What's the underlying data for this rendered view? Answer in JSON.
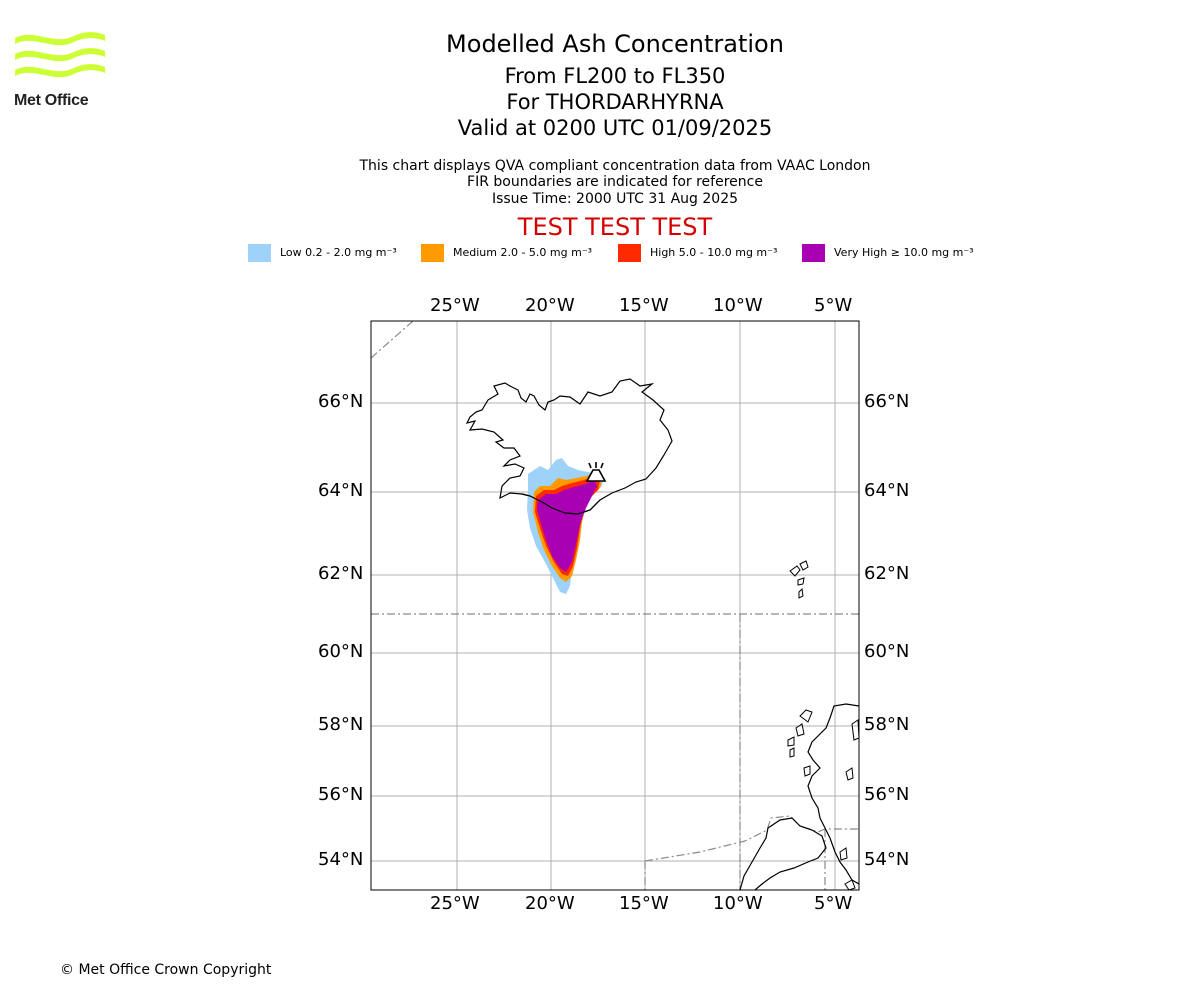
{
  "header": {
    "title": "Modelled Ash Concentration",
    "level_range": "From FL200 to FL350",
    "volcano_line": "For THORDARHYRNA",
    "valid_time": "Valid at 0200 UTC 01/09/2025",
    "note_line1": "This chart displays QVA compliant concentration data from VAAC London",
    "note_line2": "FIR boundaries are indicated for reference",
    "issue_time": "Issue Time: 2000 UTC 31 Aug 2025",
    "test_banner": "TEST TEST TEST"
  },
  "logo": {
    "text": "Met Office",
    "icon": "met-office-waves-logo",
    "color": "#ccff33"
  },
  "legend": [
    {
      "label": "Low 0.2 - 2.0 mg m⁻³",
      "color": "#9fd2f9"
    },
    {
      "label": "Medium 2.0 - 5.0 mg m⁻³",
      "color": "#ff9a00"
    },
    {
      "label": "High 5.0 - 10.0 mg m⁻³",
      "color": "#ff2a00"
    },
    {
      "label": "Very High ≥ 10.0 mg m⁻³",
      "color": "#aa00b4"
    }
  ],
  "map": {
    "lon_ticks": [
      "25°W",
      "20°W",
      "15°W",
      "10°W",
      "5°W"
    ],
    "lat_ticks": [
      "66°N",
      "64°N",
      "62°N",
      "60°N",
      "58°N",
      "56°N",
      "54°N"
    ],
    "volcano_icon": "volcano-icon",
    "gridlines": true,
    "fir_boundaries_shown": true
  },
  "footer": {
    "copyright": "© Met Office Crown Copyright"
  }
}
